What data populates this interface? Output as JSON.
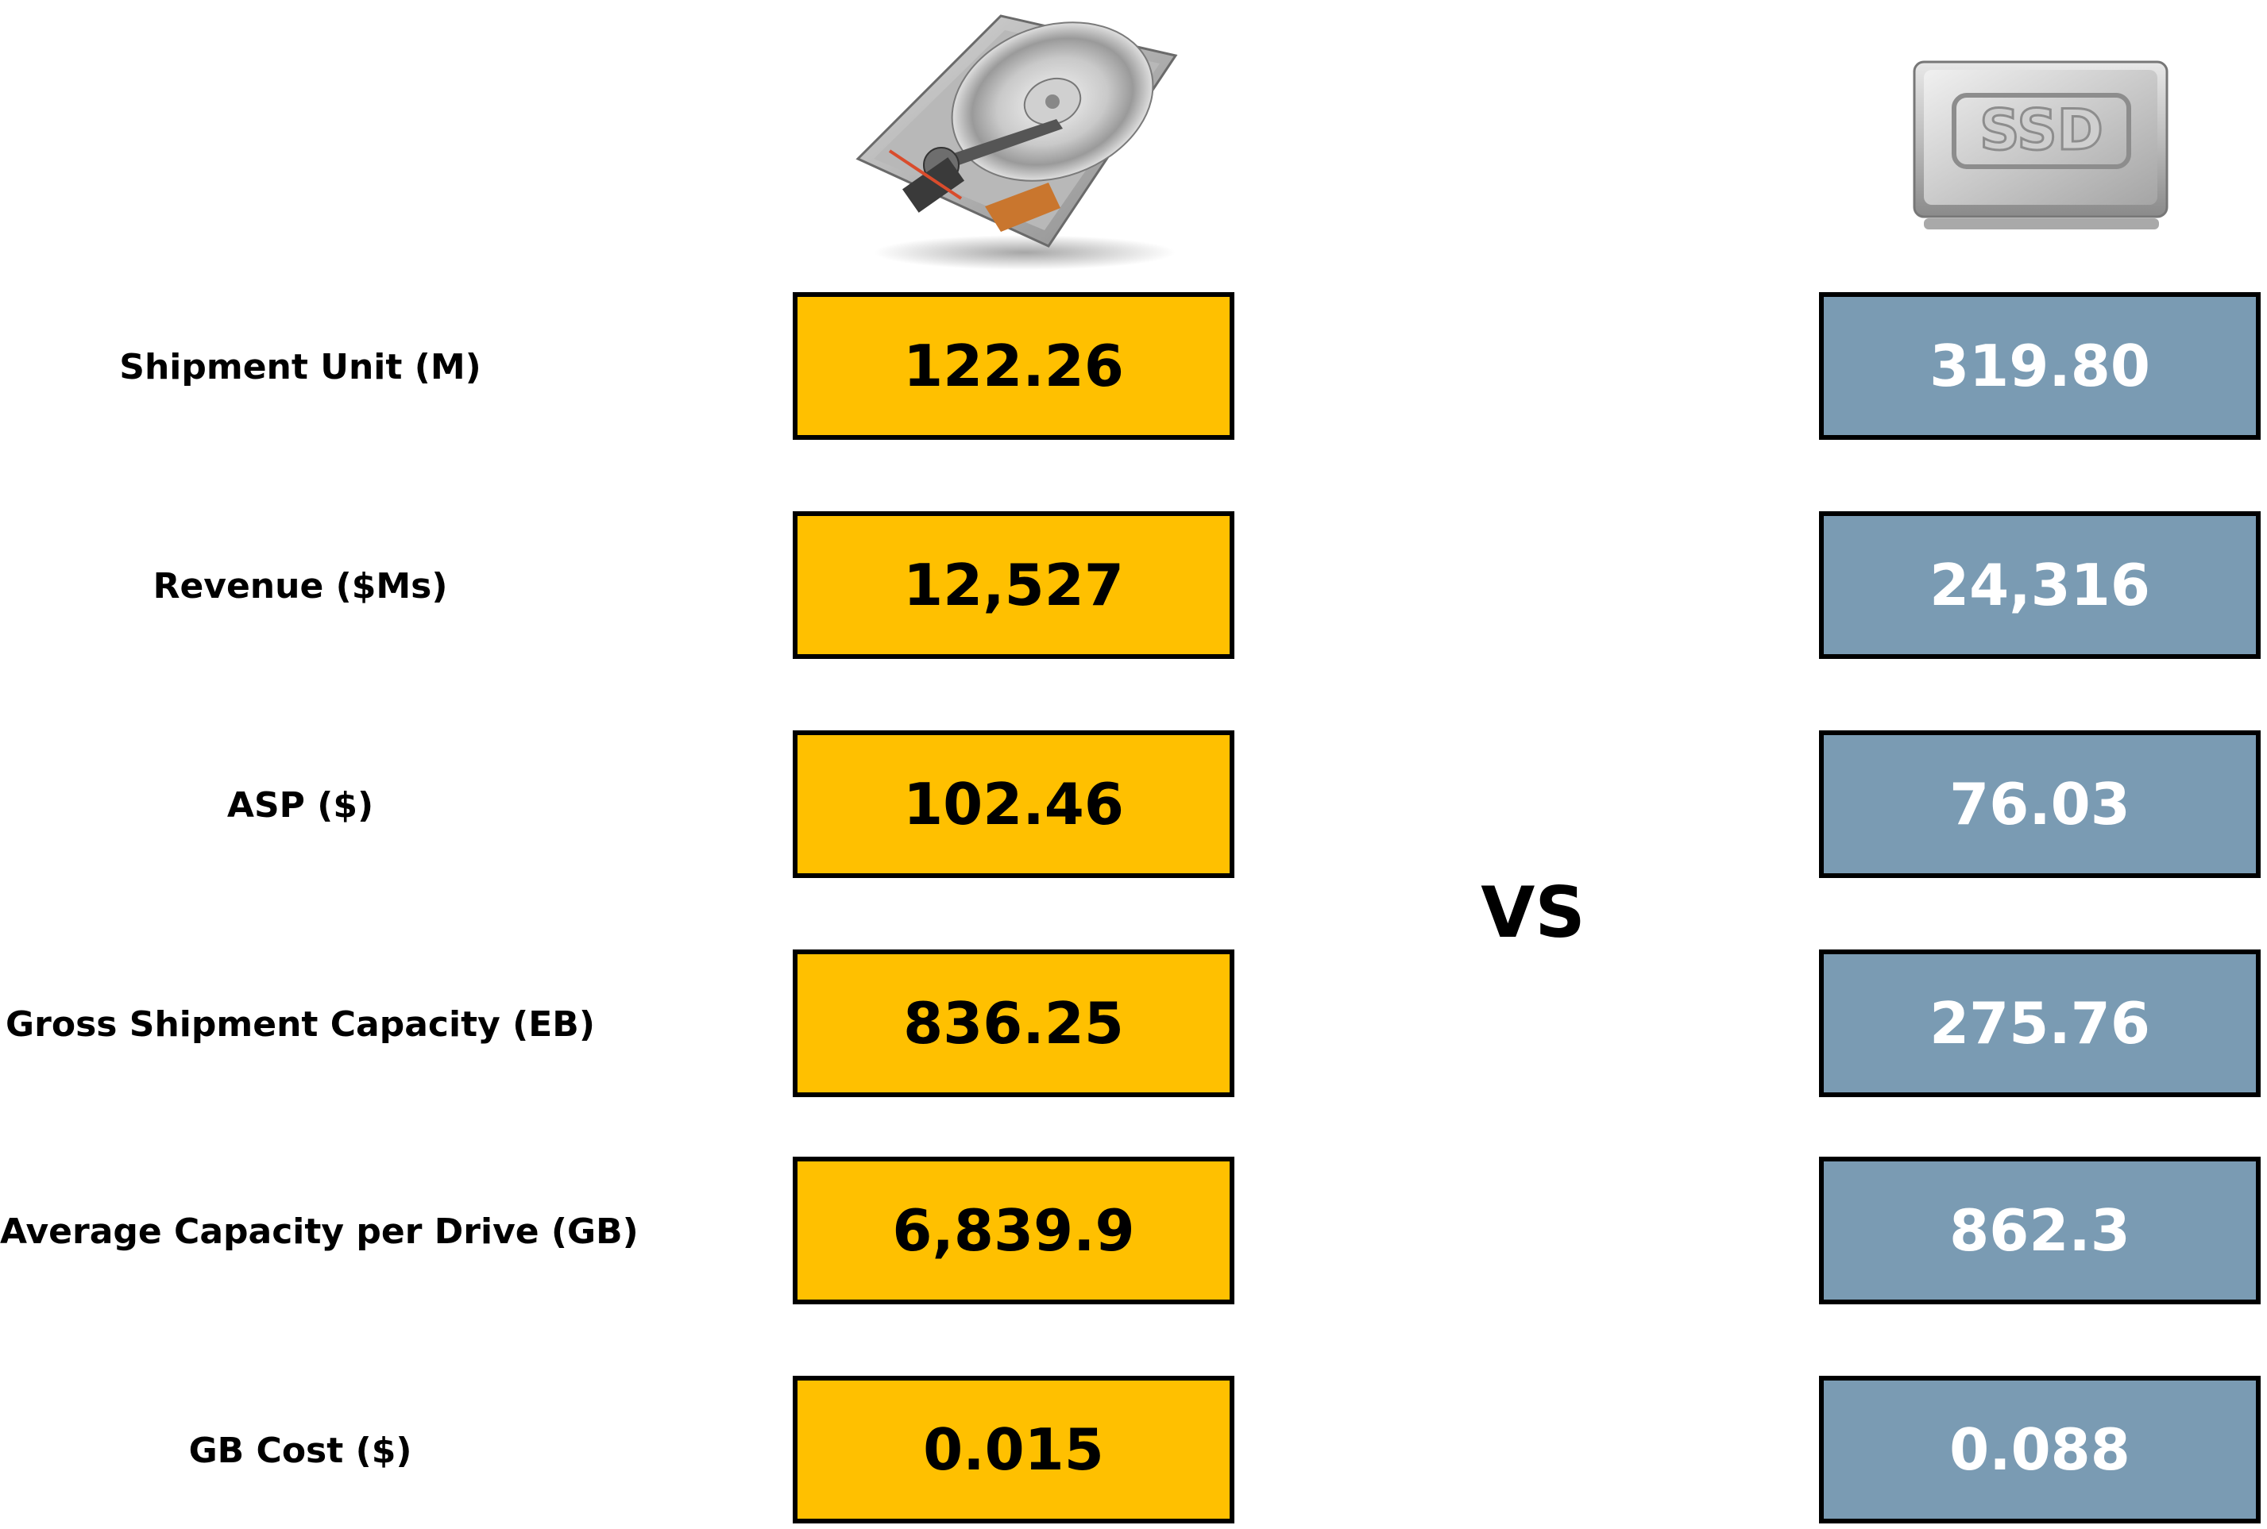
{
  "colors": {
    "hdd_fill": "#FFC000",
    "hdd_text": "#000000",
    "ssd_fill": "#7A9BB3",
    "ssd_text": "#FFFFFF",
    "border": "#000000"
  },
  "icons": {
    "hdd": "hard-disk-drive-icon",
    "ssd": "ssd-icon"
  },
  "ssd_icon_text": "SSD",
  "vs_label": "VS",
  "rows": [
    {
      "label": "Shipment Unit (M)",
      "hdd": "122.26",
      "ssd": "319.80"
    },
    {
      "label": "Revenue ($Ms)",
      "hdd": "12,527",
      "ssd": "24,316"
    },
    {
      "label": "ASP ($)",
      "hdd": "102.46",
      "ssd": "76.03"
    },
    {
      "label": "Gross Shipment Capacity (EB)",
      "hdd": "836.25",
      "ssd": "275.76"
    },
    {
      "label": "Average Capacity per Drive (GB)",
      "hdd": "6,839.9",
      "ssd": "862.3"
    },
    {
      "label": "GB Cost ($)",
      "hdd": "0.015",
      "ssd": "0.088"
    }
  ]
}
